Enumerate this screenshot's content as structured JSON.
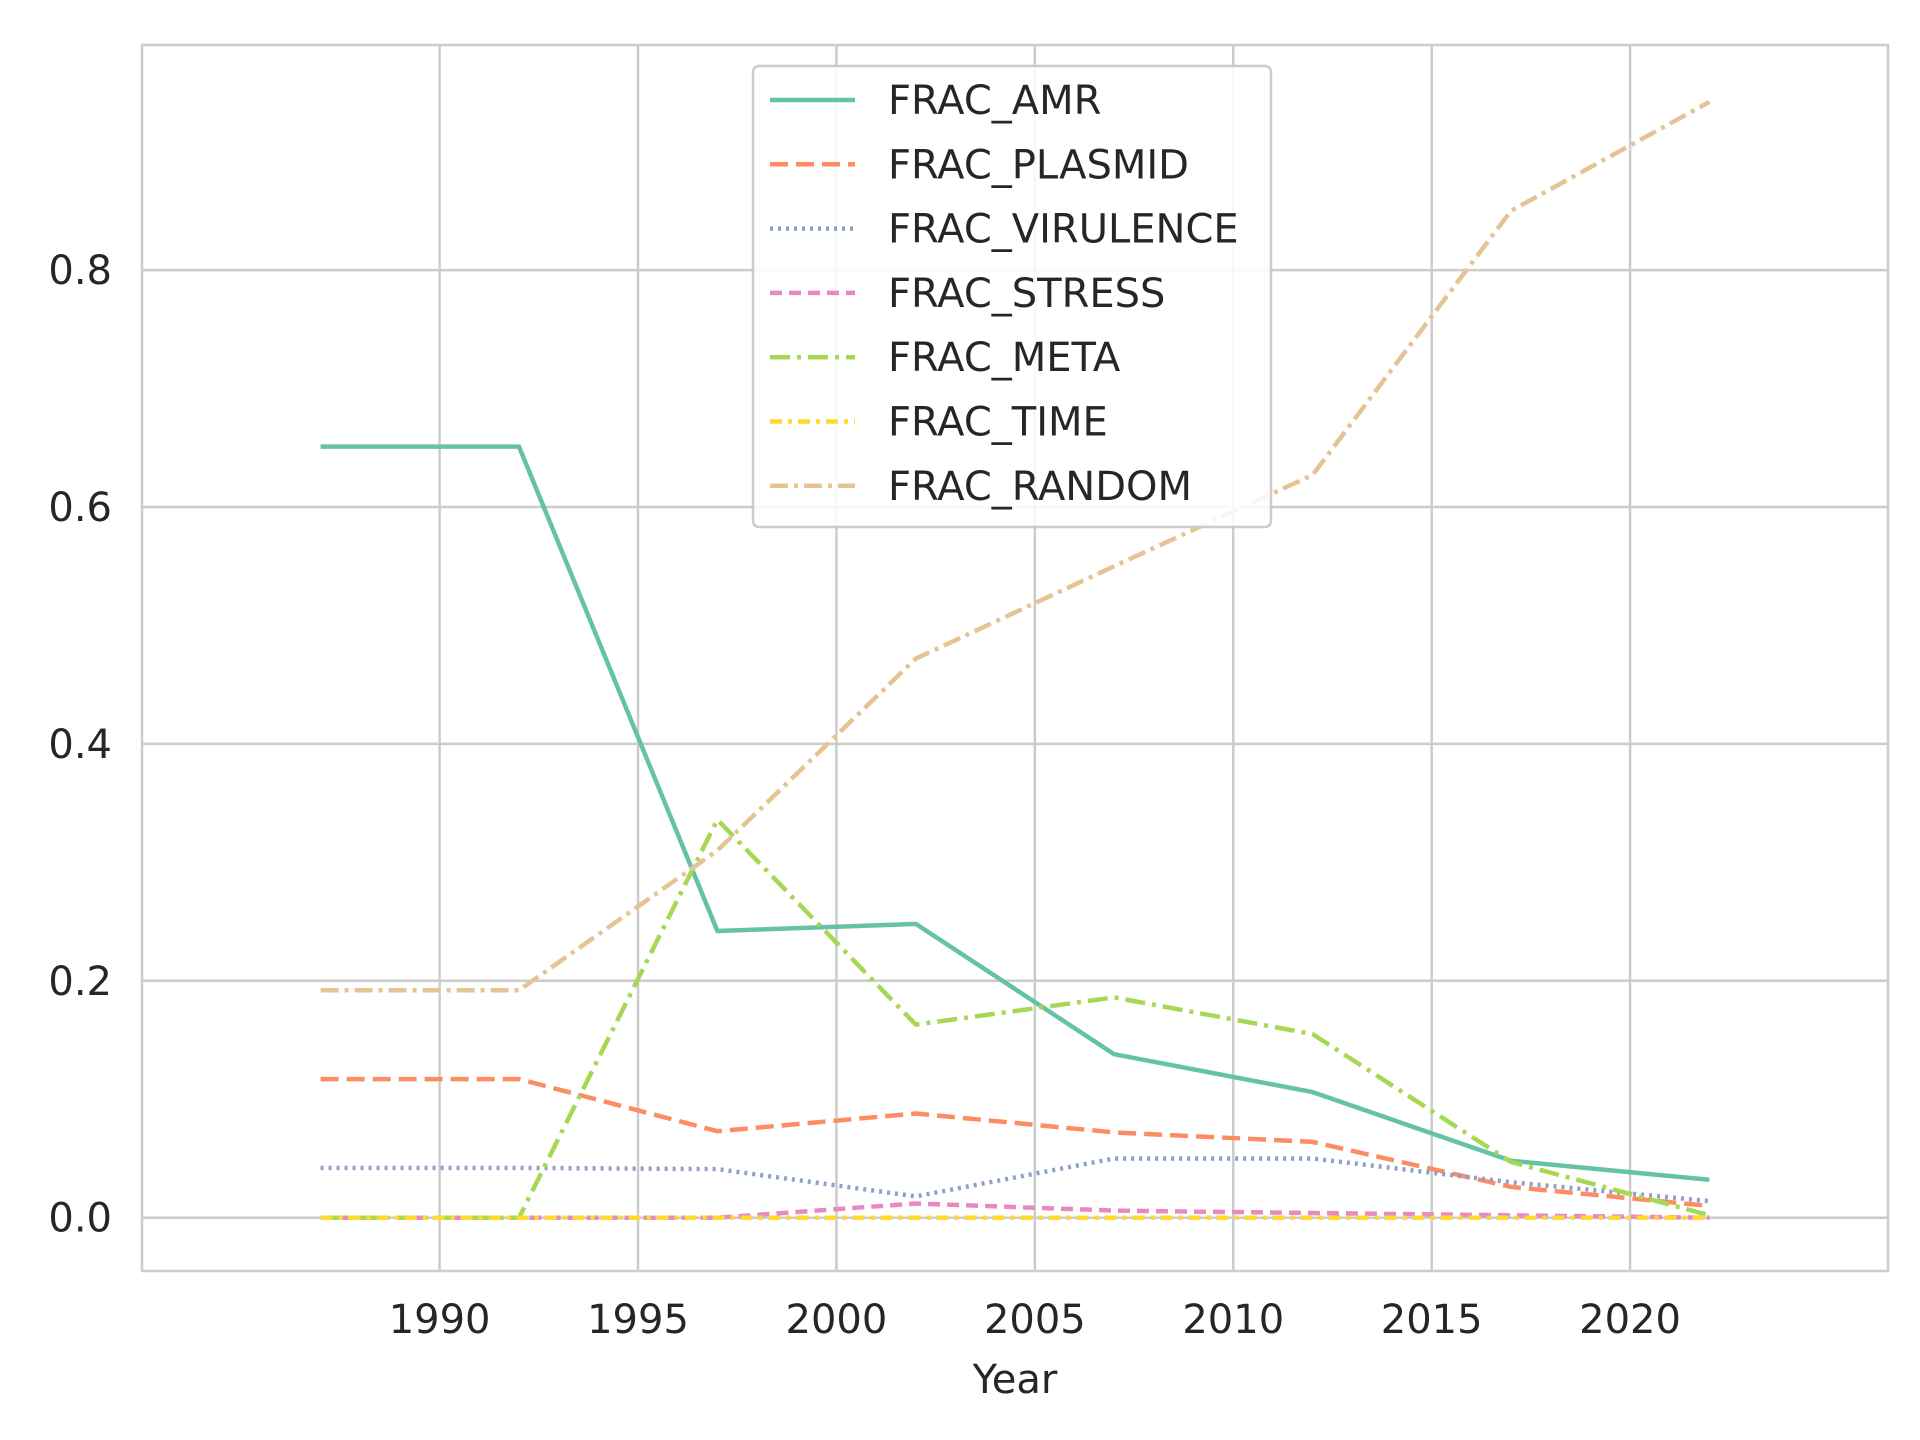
{
  "chart_data": {
    "type": "line",
    "title": "",
    "xlabel": "Year",
    "ylabel": "",
    "xlim": [
      1982.5,
      2026.5
    ],
    "ylim": [
      -0.045,
      0.99
    ],
    "xticks": [
      1990,
      1995,
      2000,
      2005,
      2010,
      2015,
      2020
    ],
    "yticks": [
      0.0,
      0.2,
      0.4,
      0.6,
      0.8
    ],
    "ytick_labels": [
      "0.0",
      "0.2",
      "0.4",
      "0.6",
      "0.8"
    ],
    "grid": true,
    "legend_position": "upper center",
    "x": [
      1987,
      1992,
      1997,
      2002,
      2007,
      2012,
      2017,
      2022
    ],
    "series": [
      {
        "name": "FRAC_AMR",
        "color": "#66c2a5",
        "dash": "solid",
        "values": [
          0.651,
          0.651,
          0.242,
          0.248,
          0.138,
          0.106,
          0.048,
          0.032
        ]
      },
      {
        "name": "FRAC_PLASMID",
        "color": "#fc8d62",
        "dash": "dashed",
        "values": [
          0.117,
          0.117,
          0.073,
          0.088,
          0.072,
          0.064,
          0.026,
          0.01
        ]
      },
      {
        "name": "FRAC_VIRULENCE",
        "color": "#8da0cb",
        "dash": "dotted",
        "values": [
          0.042,
          0.042,
          0.041,
          0.018,
          0.05,
          0.05,
          0.03,
          0.014
        ]
      },
      {
        "name": "FRAC_STRESS",
        "color": "#e78ac3",
        "dash": "dashdense",
        "values": [
          0.0,
          0.0,
          0.0,
          0.012,
          0.006,
          0.004,
          0.002,
          0.0
        ]
      },
      {
        "name": "FRAC_META",
        "color": "#a6d854",
        "dash": "dashdot",
        "values": [
          0.0,
          0.0,
          0.336,
          0.163,
          0.186,
          0.155,
          0.047,
          0.002
        ]
      },
      {
        "name": "FRAC_TIME",
        "color": "#ffd92f",
        "dash": "dashdot2",
        "values": [
          0.0,
          0.0,
          0.0,
          0.0,
          0.0,
          0.0,
          0.0,
          0.0
        ]
      },
      {
        "name": "FRAC_RANDOM",
        "color": "#e5c494",
        "dash": "dashdot3",
        "values": [
          0.192,
          0.192,
          0.31,
          0.472,
          0.55,
          0.627,
          0.85,
          0.942
        ]
      }
    ]
  }
}
